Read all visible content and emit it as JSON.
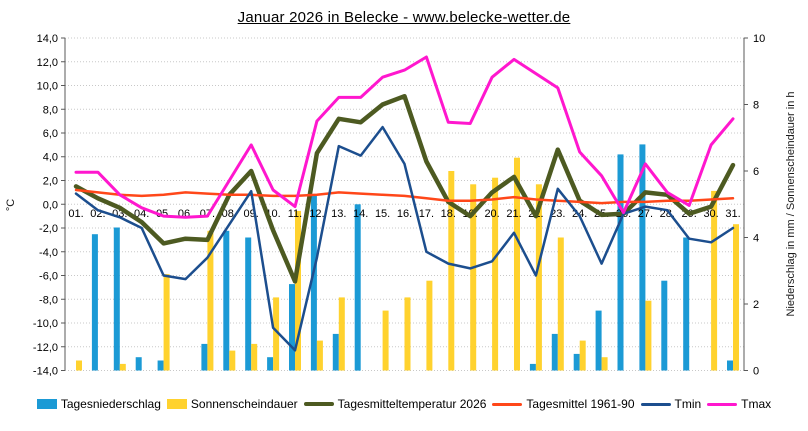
{
  "page": {
    "title": "Januar 2026 in Belecke - www.belecke-wetter.de"
  },
  "chart_data": {
    "type": "combo-bar-line",
    "title": "Januar 2026 in Belecke - www.belecke-wetter.de",
    "grid": true,
    "legend_position": "bottom",
    "categories": [
      "01.",
      "02.",
      "03.",
      "04.",
      "05.",
      "06.",
      "07.",
      "08.",
      "09.",
      "10.",
      "11.",
      "12.",
      "13.",
      "14.",
      "15.",
      "16.",
      "17.",
      "18.",
      "19.",
      "20.",
      "21.",
      "22.",
      "23.",
      "24.",
      "25.",
      "26.",
      "27.",
      "28.",
      "29.",
      "30.",
      "31."
    ],
    "left_axis": {
      "label": "°C",
      "min": -14,
      "max": 14,
      "step": 2,
      "ticks": [
        "14,0",
        "12,0",
        "10,0",
        "8,0",
        "6,0",
        "4,0",
        "2,0",
        "0,0",
        "-2,0",
        "-4,0",
        "-6,0",
        "-8,0",
        "-10,0",
        "-12,0",
        "-14,0"
      ]
    },
    "right_axis": {
      "label": "Niederschlag in mm / Sonnenscheindauer in h",
      "min": 0,
      "max": 10,
      "step": 2,
      "ticks": [
        "10",
        "8",
        "6",
        "4",
        "2",
        "0"
      ]
    },
    "series": [
      {
        "name": "Tagesniederschlag",
        "type": "bar",
        "axis": "right",
        "color": "#1b9ad5",
        "values": [
          0,
          4.1,
          4.3,
          0.4,
          0.3,
          0,
          0.8,
          4.2,
          4.0,
          0.4,
          2.6,
          5.3,
          1.1,
          5.0,
          0,
          0,
          0,
          0,
          0,
          0,
          0,
          0.2,
          1.1,
          0.5,
          1.8,
          6.5,
          6.8,
          2.7,
          4.0,
          0,
          0.3
        ]
      },
      {
        "name": "Sonnenscheindauer",
        "type": "bar",
        "axis": "right",
        "color": "#ffd22e",
        "values": [
          0.3,
          0,
          0.2,
          0,
          2.9,
          0,
          4.2,
          0.6,
          0.8,
          2.2,
          4.8,
          0.9,
          2.2,
          0,
          1.8,
          2.2,
          2.7,
          6.0,
          5.6,
          5.8,
          6.4,
          5.6,
          4.0,
          0.9,
          0.4,
          0,
          2.1,
          0,
          0,
          5.4,
          4.4
        ]
      },
      {
        "name": "Tagesmitteltemperatur 2026",
        "type": "line",
        "axis": "left",
        "color": "#4d5a21",
        "width": 4.5,
        "values": [
          1.5,
          0.5,
          -0.3,
          -1.5,
          -3.3,
          -2.9,
          -3.0,
          0.8,
          2.8,
          -2.2,
          -6.5,
          4.3,
          7.2,
          6.9,
          8.4,
          9.1,
          3.6,
          0.2,
          -1.0,
          1.0,
          2.3,
          -1.0,
          4.6,
          0.3,
          -0.9,
          -0.8,
          1.0,
          0.8,
          -0.8,
          -0.2,
          3.3
        ]
      },
      {
        "name": "Tagesmittel 1961-90",
        "type": "line",
        "axis": "left",
        "color": "#ff4719",
        "width": 2.5,
        "values": [
          1.2,
          1.0,
          0.8,
          0.7,
          0.8,
          1.0,
          0.9,
          0.8,
          0.8,
          0.7,
          0.7,
          0.8,
          1.0,
          0.9,
          0.8,
          0.7,
          0.5,
          0.3,
          0.3,
          0.4,
          0.6,
          0.4,
          0.3,
          0.2,
          0.1,
          0.2,
          0.2,
          0.3,
          0.3,
          0.4,
          0.5
        ]
      },
      {
        "name": "Tmin",
        "type": "line",
        "axis": "left",
        "color": "#1c4e8e",
        "width": 2.5,
        "values": [
          0.9,
          -0.5,
          -1.1,
          -2.0,
          -6.0,
          -6.3,
          -4.5,
          -1.7,
          1.1,
          -10.4,
          -12.3,
          -4.5,
          4.9,
          4.1,
          6.5,
          3.4,
          -4.0,
          -5.0,
          -5.4,
          -4.8,
          -2.4,
          -6.0,
          1.3,
          -1.0,
          -5.0,
          -0.8,
          -0.2,
          -0.5,
          -2.9,
          -3.2,
          -2.0
        ]
      },
      {
        "name": "Tmax",
        "type": "line",
        "axis": "left",
        "color": "#ff17ce",
        "width": 3,
        "values": [
          2.7,
          2.7,
          0.8,
          -0.3,
          -1.0,
          -1.1,
          -1.0,
          2.0,
          5.0,
          1.2,
          -0.2,
          7.0,
          9.0,
          9.0,
          10.7,
          11.3,
          12.4,
          6.9,
          6.8,
          10.7,
          12.2,
          11.0,
          9.8,
          4.4,
          2.4,
          -0.7,
          3.4,
          1.0,
          -0.1,
          5.0,
          7.2
        ]
      }
    ]
  }
}
